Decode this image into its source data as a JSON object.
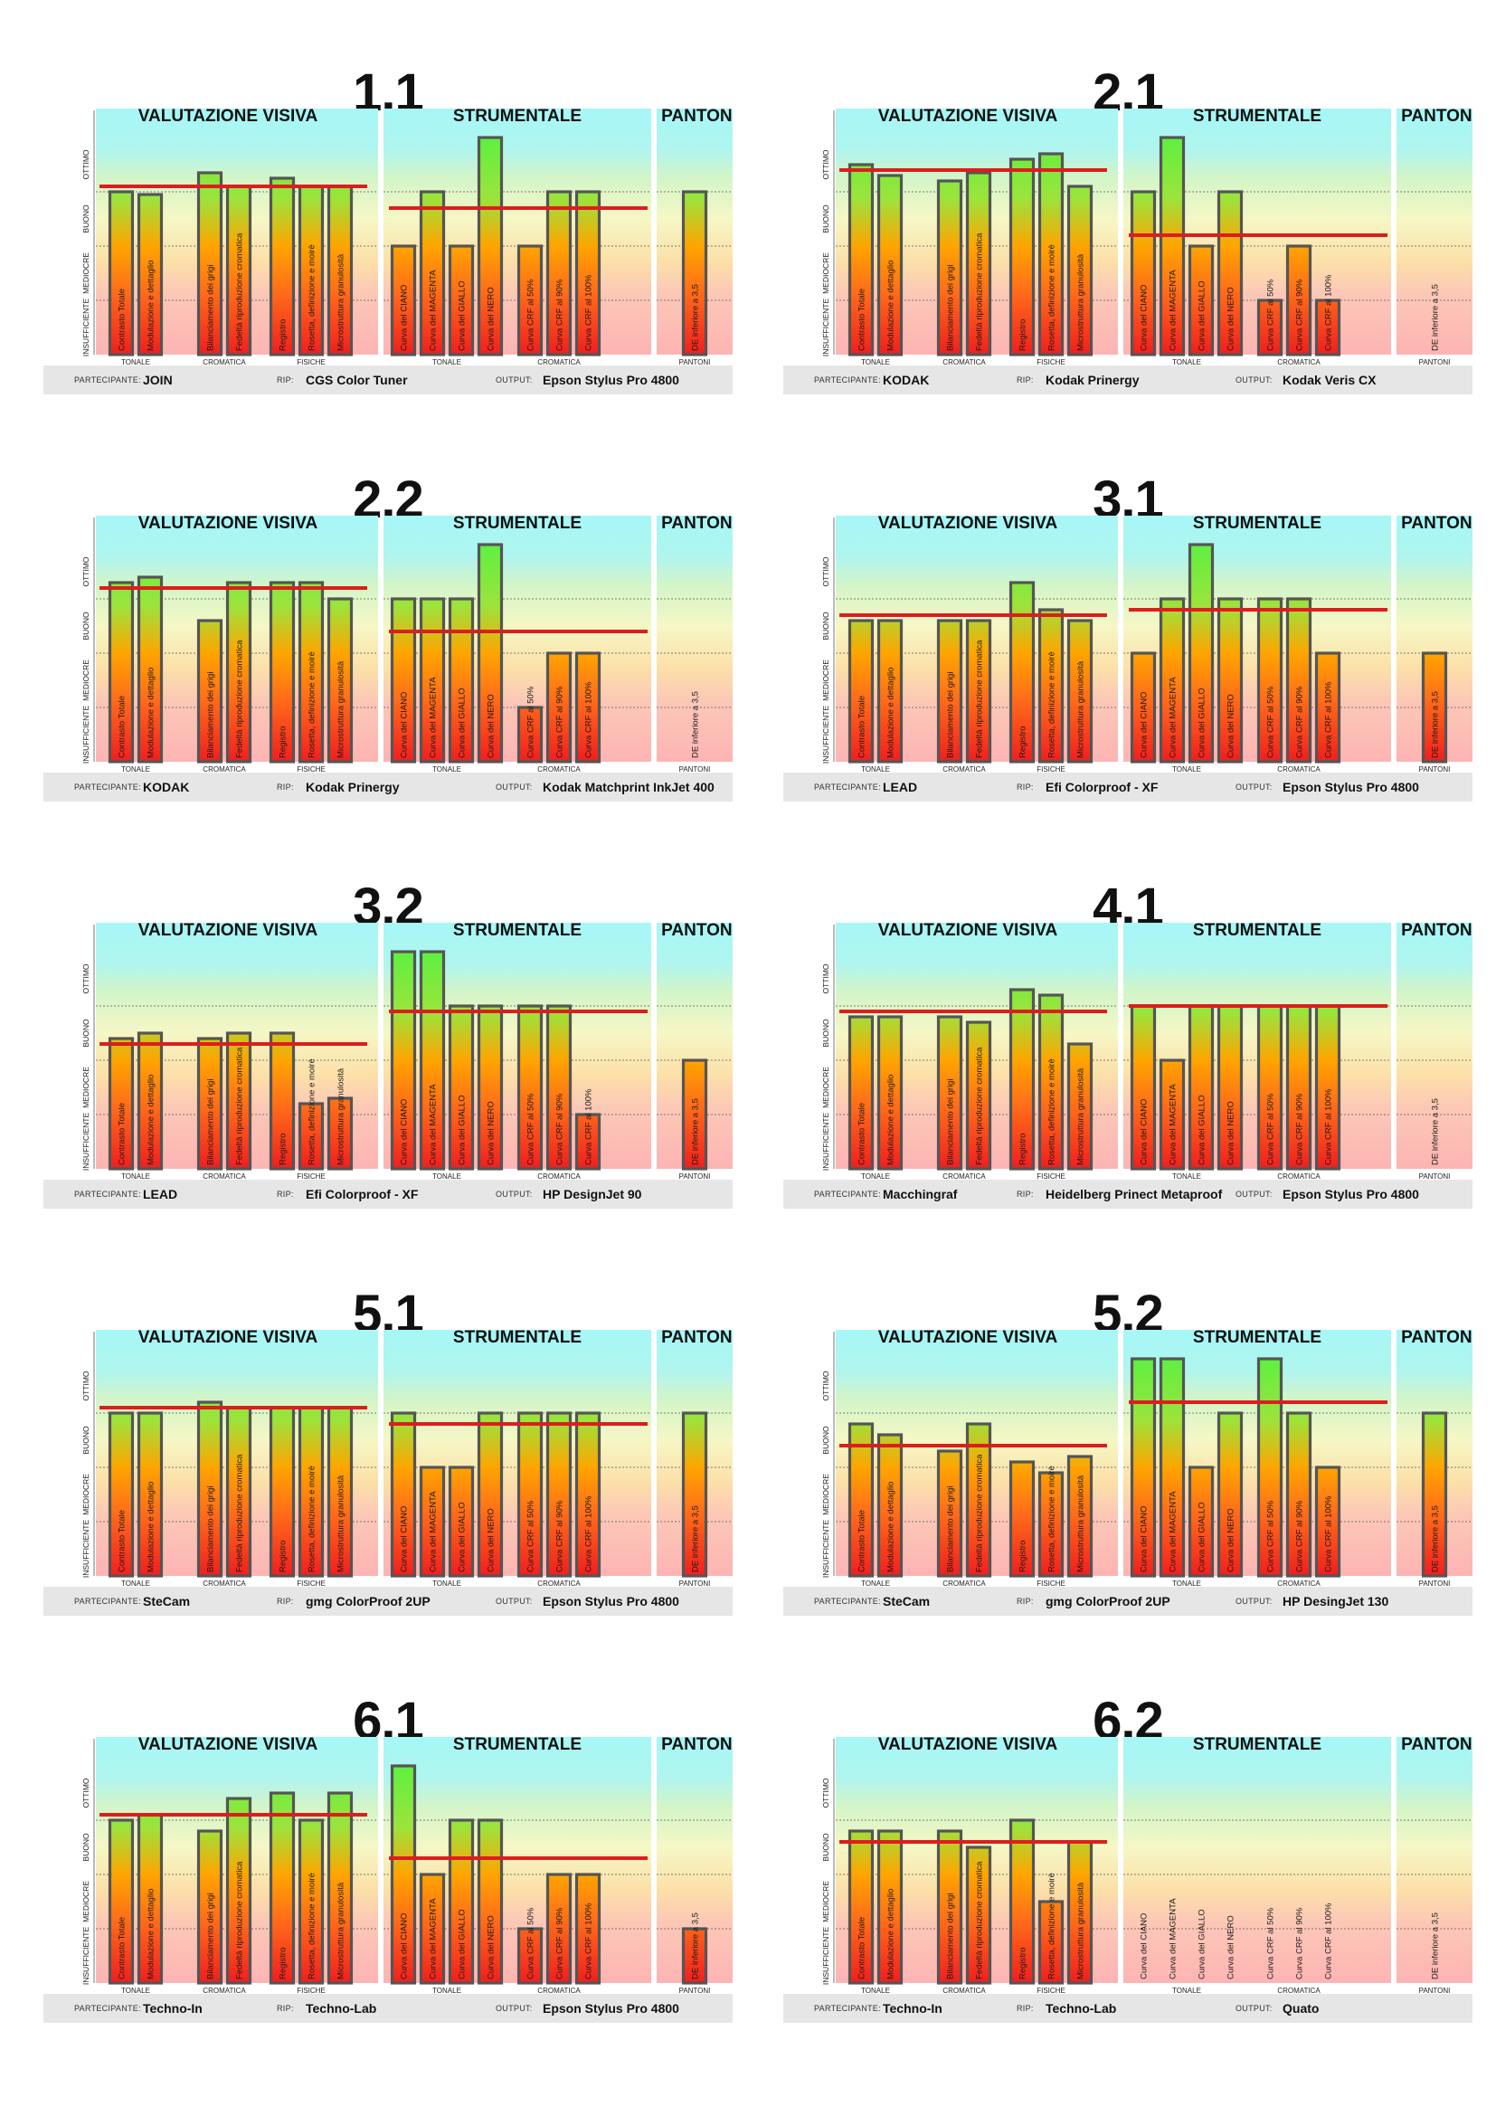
{
  "labels": {
    "visiva": "VALUTAZIONE VISIVA",
    "strumentale": "STRUMENTALE",
    "pantoni": "PANTONI",
    "levels": [
      "OTTIMO",
      "BUONO",
      "MEDIOCRE",
      "INSUFFICIENTE"
    ],
    "visiva_groups": [
      "TONALE",
      "CROMATICA",
      "FISICHE"
    ],
    "strum_groups": [
      "TONALE",
      "CROMATICA"
    ],
    "pantoni_group": "PANTONI",
    "partecipante": "PARTECIPANTE:",
    "rip": "RIP:",
    "output": "OUTPUT:"
  },
  "bar_names": {
    "visiva": [
      "Contrasto Totale",
      "Modulazione e dettaglio",
      "Bilanciamento dei grigi",
      "Fedeltà riproduzione cromatica",
      "Registro",
      "Rosetta, definizione e moirè",
      "Microstruttura granulosità"
    ],
    "strumentale": [
      "Curva del CIANO",
      "Curva del MAGENTA",
      "Curva del GIALLO",
      "Curva del NERO",
      "Curva CRF al 50%",
      "Curva CRF al 90%",
      "Curva CRF al 100%"
    ],
    "pantoni": [
      "DE inferiore a 3,5"
    ]
  },
  "colors": {
    "threshold": "#dc1e1e",
    "bar_border": "#555555",
    "bar_top": "#5ef040",
    "bar_mid": "#ffa500",
    "bar_bottom": "#f01e1e"
  },
  "chart_data": [
    {
      "type": "bar",
      "title": "1.1",
      "ylim": [
        0,
        4
      ],
      "series": [
        {
          "values": [
            3.0,
            2.95,
            3.35,
            3.1,
            3.25,
            3.1,
            3.1
          ],
          "threshold": 3.1
        },
        {
          "values": [
            2.0,
            3.0,
            2.0,
            4.0,
            2.0,
            3.0,
            3.0
          ],
          "threshold": 2.7
        },
        {
          "values": [
            3.0
          ]
        }
      ],
      "participant": {
        "partecipante": "JOIN",
        "rip": "CGS Color Tuner",
        "output": "Epson Stylus Pro 4800"
      }
    },
    {
      "type": "bar",
      "title": "2.1",
      "ylim": [
        0,
        4
      ],
      "series": [
        {
          "values": [
            3.5,
            3.3,
            3.2,
            3.35,
            3.6,
            3.7,
            3.1
          ],
          "threshold": 3.4
        },
        {
          "values": [
            3.0,
            4.0,
            2.0,
            3.0,
            1.0,
            2.0,
            1.0
          ],
          "threshold": 2.2
        },
        {
          "values": []
        }
      ],
      "participant": {
        "partecipante": "KODAK",
        "rip": "Kodak Prinergy",
        "output": "Kodak Veris CX"
      }
    },
    {
      "type": "bar",
      "title": "2.2",
      "ylim": [
        0,
        4
      ],
      "series": [
        {
          "values": [
            3.3,
            3.4,
            2.6,
            3.3,
            3.3,
            3.3,
            3.0
          ],
          "threshold": 3.2
        },
        {
          "values": [
            3.0,
            3.0,
            3.0,
            4.0,
            1.0,
            2.0,
            2.0
          ],
          "threshold": 2.4
        },
        {
          "values": []
        }
      ],
      "participant": {
        "partecipante": "KODAK",
        "rip": "Kodak Prinergy",
        "output": "Kodak Matchprint InkJet 400"
      }
    },
    {
      "type": "bar",
      "title": "3.1",
      "ylim": [
        0,
        4
      ],
      "series": [
        {
          "values": [
            2.6,
            2.6,
            2.6,
            2.6,
            3.3,
            2.8,
            2.6
          ],
          "threshold": 2.7
        },
        {
          "values": [
            2.0,
            3.0,
            4.0,
            3.0,
            3.0,
            3.0,
            2.0
          ],
          "threshold": 2.8
        },
        {
          "values": [
            2.0
          ]
        }
      ],
      "participant": {
        "partecipante": "LEAD",
        "rip": "Efi Colorproof - XF",
        "output": "Epson Stylus Pro 4800"
      }
    },
    {
      "type": "bar",
      "title": "3.2",
      "ylim": [
        0,
        4
      ],
      "series": [
        {
          "values": [
            2.4,
            2.5,
            2.4,
            2.5,
            2.5,
            1.2,
            1.3
          ],
          "threshold": 2.3
        },
        {
          "values": [
            4.0,
            4.0,
            3.0,
            3.0,
            3.0,
            3.0,
            1.0
          ],
          "threshold": 2.9
        },
        {
          "values": [
            2.0
          ]
        }
      ],
      "participant": {
        "partecipante": "LEAD",
        "rip": "Efi Colorproof - XF",
        "output": "HP DesignJet 90"
      }
    },
    {
      "type": "bar",
      "title": "4.1",
      "ylim": [
        0,
        4
      ],
      "series": [
        {
          "values": [
            2.8,
            2.8,
            2.8,
            2.7,
            3.3,
            3.2,
            2.3
          ],
          "threshold": 2.9
        },
        {
          "values": [
            3.0,
            2.0,
            3.0,
            3.0,
            3.0,
            3.0,
            3.0
          ],
          "threshold": 3.0
        },
        {
          "values": []
        }
      ],
      "participant": {
        "partecipante": "Macchingraf",
        "rip": "Heidelberg Prinect Metaproof",
        "output": "Epson Stylus Pro 4800"
      }
    },
    {
      "type": "bar",
      "title": "5.1",
      "ylim": [
        0,
        4
      ],
      "series": [
        {
          "values": [
            3.0,
            3.0,
            3.2,
            3.1,
            3.1,
            3.1,
            3.1
          ],
          "threshold": 3.1
        },
        {
          "values": [
            3.0,
            2.0,
            2.0,
            3.0,
            3.0,
            3.0,
            3.0
          ],
          "threshold": 2.8
        },
        {
          "values": [
            3.0
          ]
        }
      ],
      "participant": {
        "partecipante": "SteCam",
        "rip": "gmg ColorProof 2UP",
        "output": "Epson Stylus Pro 4800"
      }
    },
    {
      "type": "bar",
      "title": "5.2",
      "ylim": [
        0,
        4
      ],
      "series": [
        {
          "values": [
            2.8,
            2.6,
            2.3,
            2.8,
            2.1,
            1.9,
            2.2
          ],
          "threshold": 2.4
        },
        {
          "values": [
            4.0,
            4.0,
            2.0,
            3.0,
            4.0,
            3.0,
            2.0
          ],
          "threshold": 3.2
        },
        {
          "values": [
            3.0
          ]
        }
      ],
      "participant": {
        "partecipante": "SteCam",
        "rip": "gmg ColorProof 2UP",
        "output": "HP DesingJet 130"
      }
    },
    {
      "type": "bar",
      "title": "6.1",
      "ylim": [
        0,
        4
      ],
      "series": [
        {
          "values": [
            3.0,
            3.1,
            2.8,
            3.4,
            3.5,
            3.0,
            3.5
          ],
          "threshold": 3.1
        },
        {
          "values": [
            4.0,
            2.0,
            3.0,
            3.0,
            1.0,
            2.0,
            2.0
          ],
          "threshold": 2.3
        },
        {
          "values": [
            1.0
          ]
        }
      ],
      "participant": {
        "partecipante": "Techno-In",
        "rip": "Techno-Lab",
        "output": "Epson Stylus Pro 4800"
      }
    },
    {
      "type": "bar",
      "title": "6.2",
      "ylim": [
        0,
        4
      ],
      "series": [
        {
          "values": [
            2.8,
            2.8,
            2.8,
            2.5,
            3.0,
            1.5,
            2.6
          ],
          "threshold": 2.6
        },
        {
          "values": []
        },
        {
          "values": []
        }
      ],
      "participant": {
        "partecipante": "Techno-In",
        "rip": "Techno-Lab",
        "output": "Quato"
      }
    }
  ]
}
